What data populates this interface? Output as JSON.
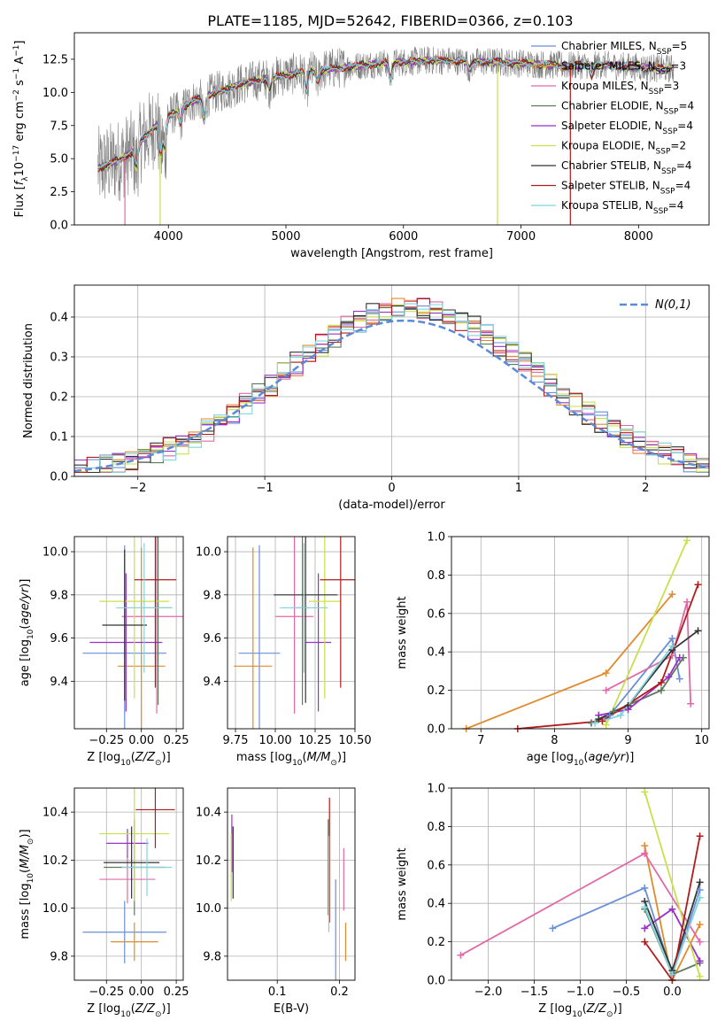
{
  "figure_title": "PLATE=1185, MJD=52642, FIBERID=0366, z=0.103",
  "colors": {
    "Chabrier MILES": "#6a8fd8",
    "Salpeter MILES": "#e08a2e",
    "Kroupa MILES": "#e06aa8",
    "Chabrier ELODIE": "#5a7a5a",
    "Salpeter ELODIE": "#9b30c8",
    "Kroupa ELODIE": "#c8e04a",
    "Chabrier STELIB": "#333333",
    "Salpeter STELIB": "#b01c1c",
    "Kroupa STELIB": "#7fd4dc",
    "data": "#808080",
    "gauss": "#5b8bd6"
  },
  "chart_data": [
    {
      "type": "line",
      "panel": "spectrum",
      "xlabel": "wavelength [Angstrom, rest frame]",
      "ylabel": "Flux [f_λ 10^-17 erg cm^-2 s^-1 A^-1]",
      "xlim": [
        3200,
        8600
      ],
      "ylim": [
        0,
        14.5
      ],
      "xticks": [
        "4000",
        "5000",
        "6000",
        "7000",
        "8000"
      ],
      "yticks": [
        "0.0",
        "2.5",
        "5.0",
        "7.5",
        "10.0",
        "12.5"
      ],
      "grid": false,
      "legend_position": "top-right",
      "legend": [
        {
          "model": "Chabrier MILES",
          "label": "Chabrier MILES, N",
          "sub": "SSP",
          "n": "=5"
        },
        {
          "model": "Salpeter MILES",
          "label": "Salpeter MILES, N",
          "sub": "SSP",
          "n": "=3"
        },
        {
          "model": "Kroupa MILES",
          "label": "Kroupa MILES, N",
          "sub": "SSP",
          "n": "=3"
        },
        {
          "model": "Chabrier ELODIE",
          "label": "Chabrier ELODIE, N",
          "sub": "SSP",
          "n": "=4"
        },
        {
          "model": "Salpeter ELODIE",
          "label": "Salpeter ELODIE, N",
          "sub": "SSP",
          "n": "=4"
        },
        {
          "model": "Kroupa ELODIE",
          "label": "Kroupa ELODIE, N",
          "sub": "SSP",
          "n": "=2"
        },
        {
          "model": "Chabrier STELIB",
          "label": "Chabrier STELIB, N",
          "sub": "SSP",
          "n": "=4"
        },
        {
          "model": "Salpeter STELIB",
          "label": "Salpeter STELIB, N",
          "sub": "SSP",
          "n": "=4"
        },
        {
          "model": "Kroupa STELIB",
          "label": "Kroupa STELIB, N",
          "sub": "SSP",
          "n": "=4"
        }
      ],
      "continuum": {
        "x": [
          3400,
          3500,
          3600,
          3700,
          3800,
          3900,
          4000,
          4100,
          4200,
          4300,
          4400,
          4500,
          4600,
          4800,
          5000,
          5200,
          5400,
          5600,
          5800,
          6000,
          6200,
          6400,
          6600,
          6800,
          7000,
          7200,
          7400,
          7600,
          7800,
          8000,
          8200,
          8300
        ],
        "y": [
          4.3,
          4.6,
          5.0,
          5.6,
          6.6,
          7.6,
          8.2,
          8.7,
          9.3,
          9.6,
          10.0,
          10.2,
          10.6,
          11.0,
          11.3,
          11.6,
          11.8,
          12.0,
          12.2,
          12.3,
          12.4,
          12.4,
          12.3,
          12.3,
          12.2,
          12.1,
          12.0,
          12.1,
          12.0,
          11.9,
          11.8,
          11.8
        ]
      },
      "spikes": [
        {
          "model": "Kroupa MILES",
          "x": 3630
        },
        {
          "model": "Kroupa ELODIE",
          "x": 3930
        },
        {
          "model": "Kroupa ELODIE",
          "x": 6800
        },
        {
          "model": "Salpeter STELIB",
          "x": 7420
        }
      ]
    },
    {
      "type": "bar",
      "panel": "residual-histogram",
      "xlabel": "(data-model)/error",
      "ylabel": "Normed distribution",
      "xlim": [
        -2.5,
        2.5
      ],
      "ylim": [
        0,
        0.48
      ],
      "xticks": [
        "−2",
        "−1",
        "0",
        "1",
        "2"
      ],
      "yticks": [
        "0.0",
        "0.1",
        "0.2",
        "0.3",
        "0.4"
      ],
      "grid": true,
      "legend_position": "top-right",
      "legend_label": "N(0,1)",
      "bin_width": 0.1
    },
    {
      "type": "scatter",
      "panel": "age-vs-Z",
      "xlabel": "Z [log10(Z/Z⊙)]",
      "ylabel": "age [log10(age/yr)]",
      "xlim": [
        -0.48,
        0.3
      ],
      "ylim": [
        9.18,
        10.07
      ],
      "xticks": [
        "−0.25",
        "0.00",
        "0.25"
      ],
      "yticks": [
        "9.4",
        "9.6",
        "9.8",
        "10.0"
      ],
      "grid": true,
      "points": [
        {
          "model": "Chabrier MILES",
          "x": -0.12,
          "xerr": 0.3,
          "y": 9.53,
          "yerr": 0.5
        },
        {
          "model": "Salpeter MILES",
          "x": 0.0,
          "xerr": 0.17,
          "y": 9.47,
          "yerr": 0.55
        },
        {
          "model": "Kroupa MILES",
          "x": 0.11,
          "xerr": 0.25,
          "y": 9.7,
          "yerr": 0.45
        },
        {
          "model": "Chabrier ELODIE",
          "x": 0.12,
          "xerr": 0.1,
          "y": 9.74,
          "yerr": 0.45
        },
        {
          "model": "Salpeter ELODIE",
          "x": -0.11,
          "xerr": 0.26,
          "y": 9.58,
          "yerr": 0.32
        },
        {
          "model": "Kroupa ELODIE",
          "x": -0.05,
          "xerr": 0.25,
          "y": 9.77,
          "yerr": 0.45
        },
        {
          "model": "Chabrier STELIB",
          "x": -0.12,
          "xerr": 0.16,
          "y": 9.66,
          "yerr": 0.35
        },
        {
          "model": "Salpeter STELIB",
          "x": 0.1,
          "xerr": 0.15,
          "y": 9.87,
          "yerr": 0.5
        },
        {
          "model": "Kroupa STELIB",
          "x": 0.02,
          "xerr": 0.2,
          "y": 9.74,
          "yerr": 0.3
        }
      ]
    },
    {
      "type": "scatter",
      "panel": "age-vs-mass",
      "xlabel": "mass [log10(M/M⊙)]",
      "ylabel": "",
      "xlim": [
        9.7,
        10.5
      ],
      "ylim": [
        9.18,
        10.07
      ],
      "xticks": [
        "9.75",
        "10.00",
        "10.25",
        "10.50"
      ],
      "yticks": [
        "9.4",
        "9.6",
        "9.8",
        "10.0"
      ],
      "grid": true,
      "points": [
        {
          "model": "Chabrier MILES",
          "x": 9.9,
          "xerr": 0.13,
          "y": 9.53,
          "yerr": 0.5
        },
        {
          "model": "Salpeter MILES",
          "x": 9.86,
          "xerr": 0.12,
          "y": 9.47,
          "yerr": 0.55
        },
        {
          "model": "Kroupa MILES",
          "x": 10.12,
          "xerr": 0.12,
          "y": 9.7,
          "yerr": 0.45
        },
        {
          "model": "Chabrier ELODIE",
          "x": 10.17,
          "xerr": 0.04,
          "y": 9.74,
          "yerr": 0.45
        },
        {
          "model": "Salpeter ELODIE",
          "x": 10.27,
          "xerr": 0.08,
          "y": 9.58,
          "yerr": 0.32
        },
        {
          "model": "Kroupa ELODIE",
          "x": 10.31,
          "xerr": 0.1,
          "y": 9.77,
          "yerr": 0.45
        },
        {
          "model": "Chabrier STELIB",
          "x": 10.19,
          "xerr": 0.2,
          "y": 9.8,
          "yerr": 0.5
        },
        {
          "model": "Salpeter STELIB",
          "x": 10.41,
          "xerr": 0.13,
          "y": 9.87,
          "yerr": 0.5
        },
        {
          "model": "Kroupa STELIB",
          "x": 10.18,
          "xerr": 0.15,
          "y": 9.74,
          "yerr": 0.3
        }
      ]
    },
    {
      "type": "line",
      "panel": "mass-weight-vs-age",
      "xlabel": "age [log10(age/yr)]",
      "ylabel": "mass weight",
      "xlim": [
        6.6,
        10.1
      ],
      "ylim": [
        0,
        1.0
      ],
      "xticks": [
        "7",
        "8",
        "9",
        "10"
      ],
      "yticks": [
        "0.0",
        "0.2",
        "0.4",
        "0.6",
        "0.8",
        "1.0"
      ],
      "grid": true,
      "series": [
        {
          "model": "Chabrier MILES",
          "x": [
            8.5,
            8.75,
            9.6,
            9.7
          ],
          "y": [
            0.03,
            0.07,
            0.47,
            0.26
          ]
        },
        {
          "model": "Salpeter MILES",
          "x": [
            6.8,
            8.7,
            9.6
          ],
          "y": [
            0.0,
            0.29,
            0.7
          ]
        },
        {
          "model": "Kroupa MILES",
          "x": [
            8.7,
            9.6,
            9.8,
            9.85
          ],
          "y": [
            0.2,
            0.38,
            0.66,
            0.13
          ]
        },
        {
          "model": "Chabrier ELODIE",
          "x": [
            8.5,
            8.8,
            9.45,
            9.75
          ],
          "y": [
            0.03,
            0.09,
            0.2,
            0.37
          ]
        },
        {
          "model": "Salpeter ELODIE",
          "x": [
            8.6,
            9.0,
            9.55,
            9.7
          ],
          "y": [
            0.07,
            0.1,
            0.27,
            0.37
          ]
        },
        {
          "model": "Kroupa ELODIE",
          "x": [
            8.7,
            9.8
          ],
          "y": [
            0.02,
            0.98
          ]
        },
        {
          "model": "Chabrier STELIB",
          "x": [
            8.6,
            9.0,
            9.6,
            9.95
          ],
          "y": [
            0.05,
            0.12,
            0.41,
            0.51
          ]
        },
        {
          "model": "Salpeter STELIB",
          "x": [
            7.5,
            8.65,
            9.45,
            9.95
          ],
          "y": [
            0.0,
            0.04,
            0.24,
            0.75
          ]
        },
        {
          "model": "Kroupa STELIB",
          "x": [
            8.55,
            8.9,
            9.6
          ],
          "y": [
            0.03,
            0.07,
            0.43
          ]
        }
      ]
    },
    {
      "type": "scatter",
      "panel": "mass-vs-Z",
      "xlabel": "Z [log10(Z/Z⊙)]",
      "ylabel": "mass [log10(M/M⊙)]",
      "xlim": [
        -0.48,
        0.3
      ],
      "ylim": [
        9.7,
        10.5
      ],
      "xticks": [
        "−0.25",
        "0.00",
        "0.25"
      ],
      "yticks": [
        "9.8",
        "10.0",
        "10.2",
        "10.4"
      ],
      "grid": true,
      "points": [
        {
          "model": "Chabrier MILES",
          "x": -0.12,
          "xerr": 0.3,
          "y": 9.9,
          "yerr": 0.13
        },
        {
          "model": "Salpeter MILES",
          "x": -0.05,
          "xerr": 0.17,
          "y": 9.86,
          "yerr": 0.08
        },
        {
          "model": "Kroupa MILES",
          "x": -0.1,
          "xerr": 0.2,
          "y": 10.12,
          "yerr": 0.1
        },
        {
          "model": "Chabrier ELODIE",
          "x": -0.05,
          "xerr": 0.22,
          "y": 10.17,
          "yerr": 0.2
        },
        {
          "model": "Salpeter ELODIE",
          "x": -0.1,
          "xerr": 0.15,
          "y": 10.27,
          "yerr": 0.06
        },
        {
          "model": "Kroupa ELODIE",
          "x": -0.05,
          "xerr": 0.25,
          "y": 10.31,
          "yerr": 0.28
        },
        {
          "model": "Chabrier STELIB",
          "x": -0.07,
          "xerr": 0.2,
          "y": 10.19,
          "yerr": 0.15
        },
        {
          "model": "Salpeter STELIB",
          "x": 0.1,
          "xerr": 0.14,
          "y": 10.41,
          "yerr": 0.16
        },
        {
          "model": "Kroupa STELIB",
          "x": 0.04,
          "xerr": 0.18,
          "y": 10.17,
          "yerr": 0.12
        }
      ]
    },
    {
      "type": "scatter",
      "panel": "mass-vs-EBV",
      "xlabel": "E(B-V)",
      "ylabel": "",
      "xlim": [
        0.02,
        0.225
      ],
      "ylim": [
        9.7,
        10.5
      ],
      "xticks": [
        "0.1",
        "0.2"
      ],
      "yticks": [
        "9.8",
        "10.0",
        "10.2",
        "10.4"
      ],
      "grid": true,
      "points": [
        {
          "model": "Chabrier MILES",
          "x": 0.194,
          "y": 9.9,
          "yerr": 0.22
        },
        {
          "model": "Salpeter MILES",
          "x": 0.21,
          "y": 9.86,
          "yerr": 0.08
        },
        {
          "model": "Kroupa MILES",
          "x": 0.207,
          "y": 10.12,
          "yerr": 0.13
        },
        {
          "model": "Chabrier ELODIE",
          "x": 0.182,
          "y": 10.17,
          "yerr": 0.2
        },
        {
          "model": "Salpeter ELODIE",
          "x": 0.027,
          "y": 10.27,
          "yerr": 0.12
        },
        {
          "model": "Kroupa ELODIE",
          "x": 0.026,
          "y": 10.17,
          "yerr": 0.14
        },
        {
          "model": "Chabrier STELIB",
          "x": 0.029,
          "y": 10.19,
          "yerr": 0.15
        },
        {
          "model": "Salpeter STELIB",
          "x": 0.184,
          "y": 10.2,
          "yerr": 0.26
        },
        {
          "model": "Kroupa STELIB",
          "x": 0.183,
          "y": 10.1,
          "yerr": 0.2
        }
      ]
    },
    {
      "type": "line",
      "panel": "mass-weight-vs-Z",
      "xlabel": "Z [log10(Z/Z⊙)]",
      "ylabel": "mass weight",
      "xlim": [
        -2.4,
        0.4
      ],
      "ylim": [
        0,
        1.0
      ],
      "xticks": [
        "−2.0",
        "−1.5",
        "−1.0",
        "−0.5",
        "0.0"
      ],
      "yticks": [
        "0.0",
        "0.2",
        "0.4",
        "0.6",
        "0.8",
        "1.0"
      ],
      "grid": true,
      "series": [
        {
          "model": "Chabrier MILES",
          "x": [
            -1.3,
            -0.3,
            0.0,
            0.3
          ],
          "y": [
            0.27,
            0.48,
            0.03,
            0.47
          ]
        },
        {
          "model": "Salpeter MILES",
          "x": [
            -0.3,
            0.0,
            0.3
          ],
          "y": [
            0.7,
            0.0,
            0.29
          ]
        },
        {
          "model": "Kroupa MILES",
          "x": [
            -2.3,
            -0.3,
            0.3
          ],
          "y": [
            0.13,
            0.66,
            0.2
          ]
        },
        {
          "model": "Chabrier ELODIE",
          "x": [
            -0.3,
            0.0,
            0.3
          ],
          "y": [
            0.37,
            0.03,
            0.09
          ]
        },
        {
          "model": "Salpeter ELODIE",
          "x": [
            -0.3,
            0.0,
            0.3
          ],
          "y": [
            0.27,
            0.37,
            0.1
          ]
        },
        {
          "model": "Kroupa ELODIE",
          "x": [
            -0.3,
            0.3
          ],
          "y": [
            0.98,
            0.02
          ]
        },
        {
          "model": "Chabrier STELIB",
          "x": [
            -0.3,
            0.0,
            0.3
          ],
          "y": [
            0.41,
            0.05,
            0.51
          ]
        },
        {
          "model": "Salpeter STELIB",
          "x": [
            -0.3,
            0.0,
            0.3
          ],
          "y": [
            0.2,
            0.0,
            0.75
          ]
        },
        {
          "model": "Kroupa STELIB",
          "x": [
            -0.3,
            0.0,
            0.3
          ],
          "y": [
            0.38,
            0.03,
            0.43
          ]
        }
      ]
    }
  ]
}
